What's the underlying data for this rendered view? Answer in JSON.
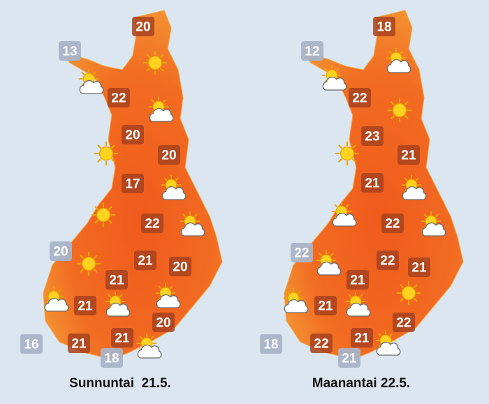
{
  "maps": [
    {
      "caption": "Sunnuntai  21.5.",
      "temperatures": [
        20,
        13,
        22,
        20,
        20,
        17,
        22,
        20,
        21,
        20,
        21,
        21,
        20,
        16,
        21,
        21,
        18
      ]
    },
    {
      "caption": "Maanantai 22.5.",
      "temperatures": [
        18,
        12,
        22,
        23,
        21,
        21,
        22,
        22,
        22,
        21,
        21,
        21,
        22,
        18,
        22,
        21,
        21
      ]
    }
  ]
}
